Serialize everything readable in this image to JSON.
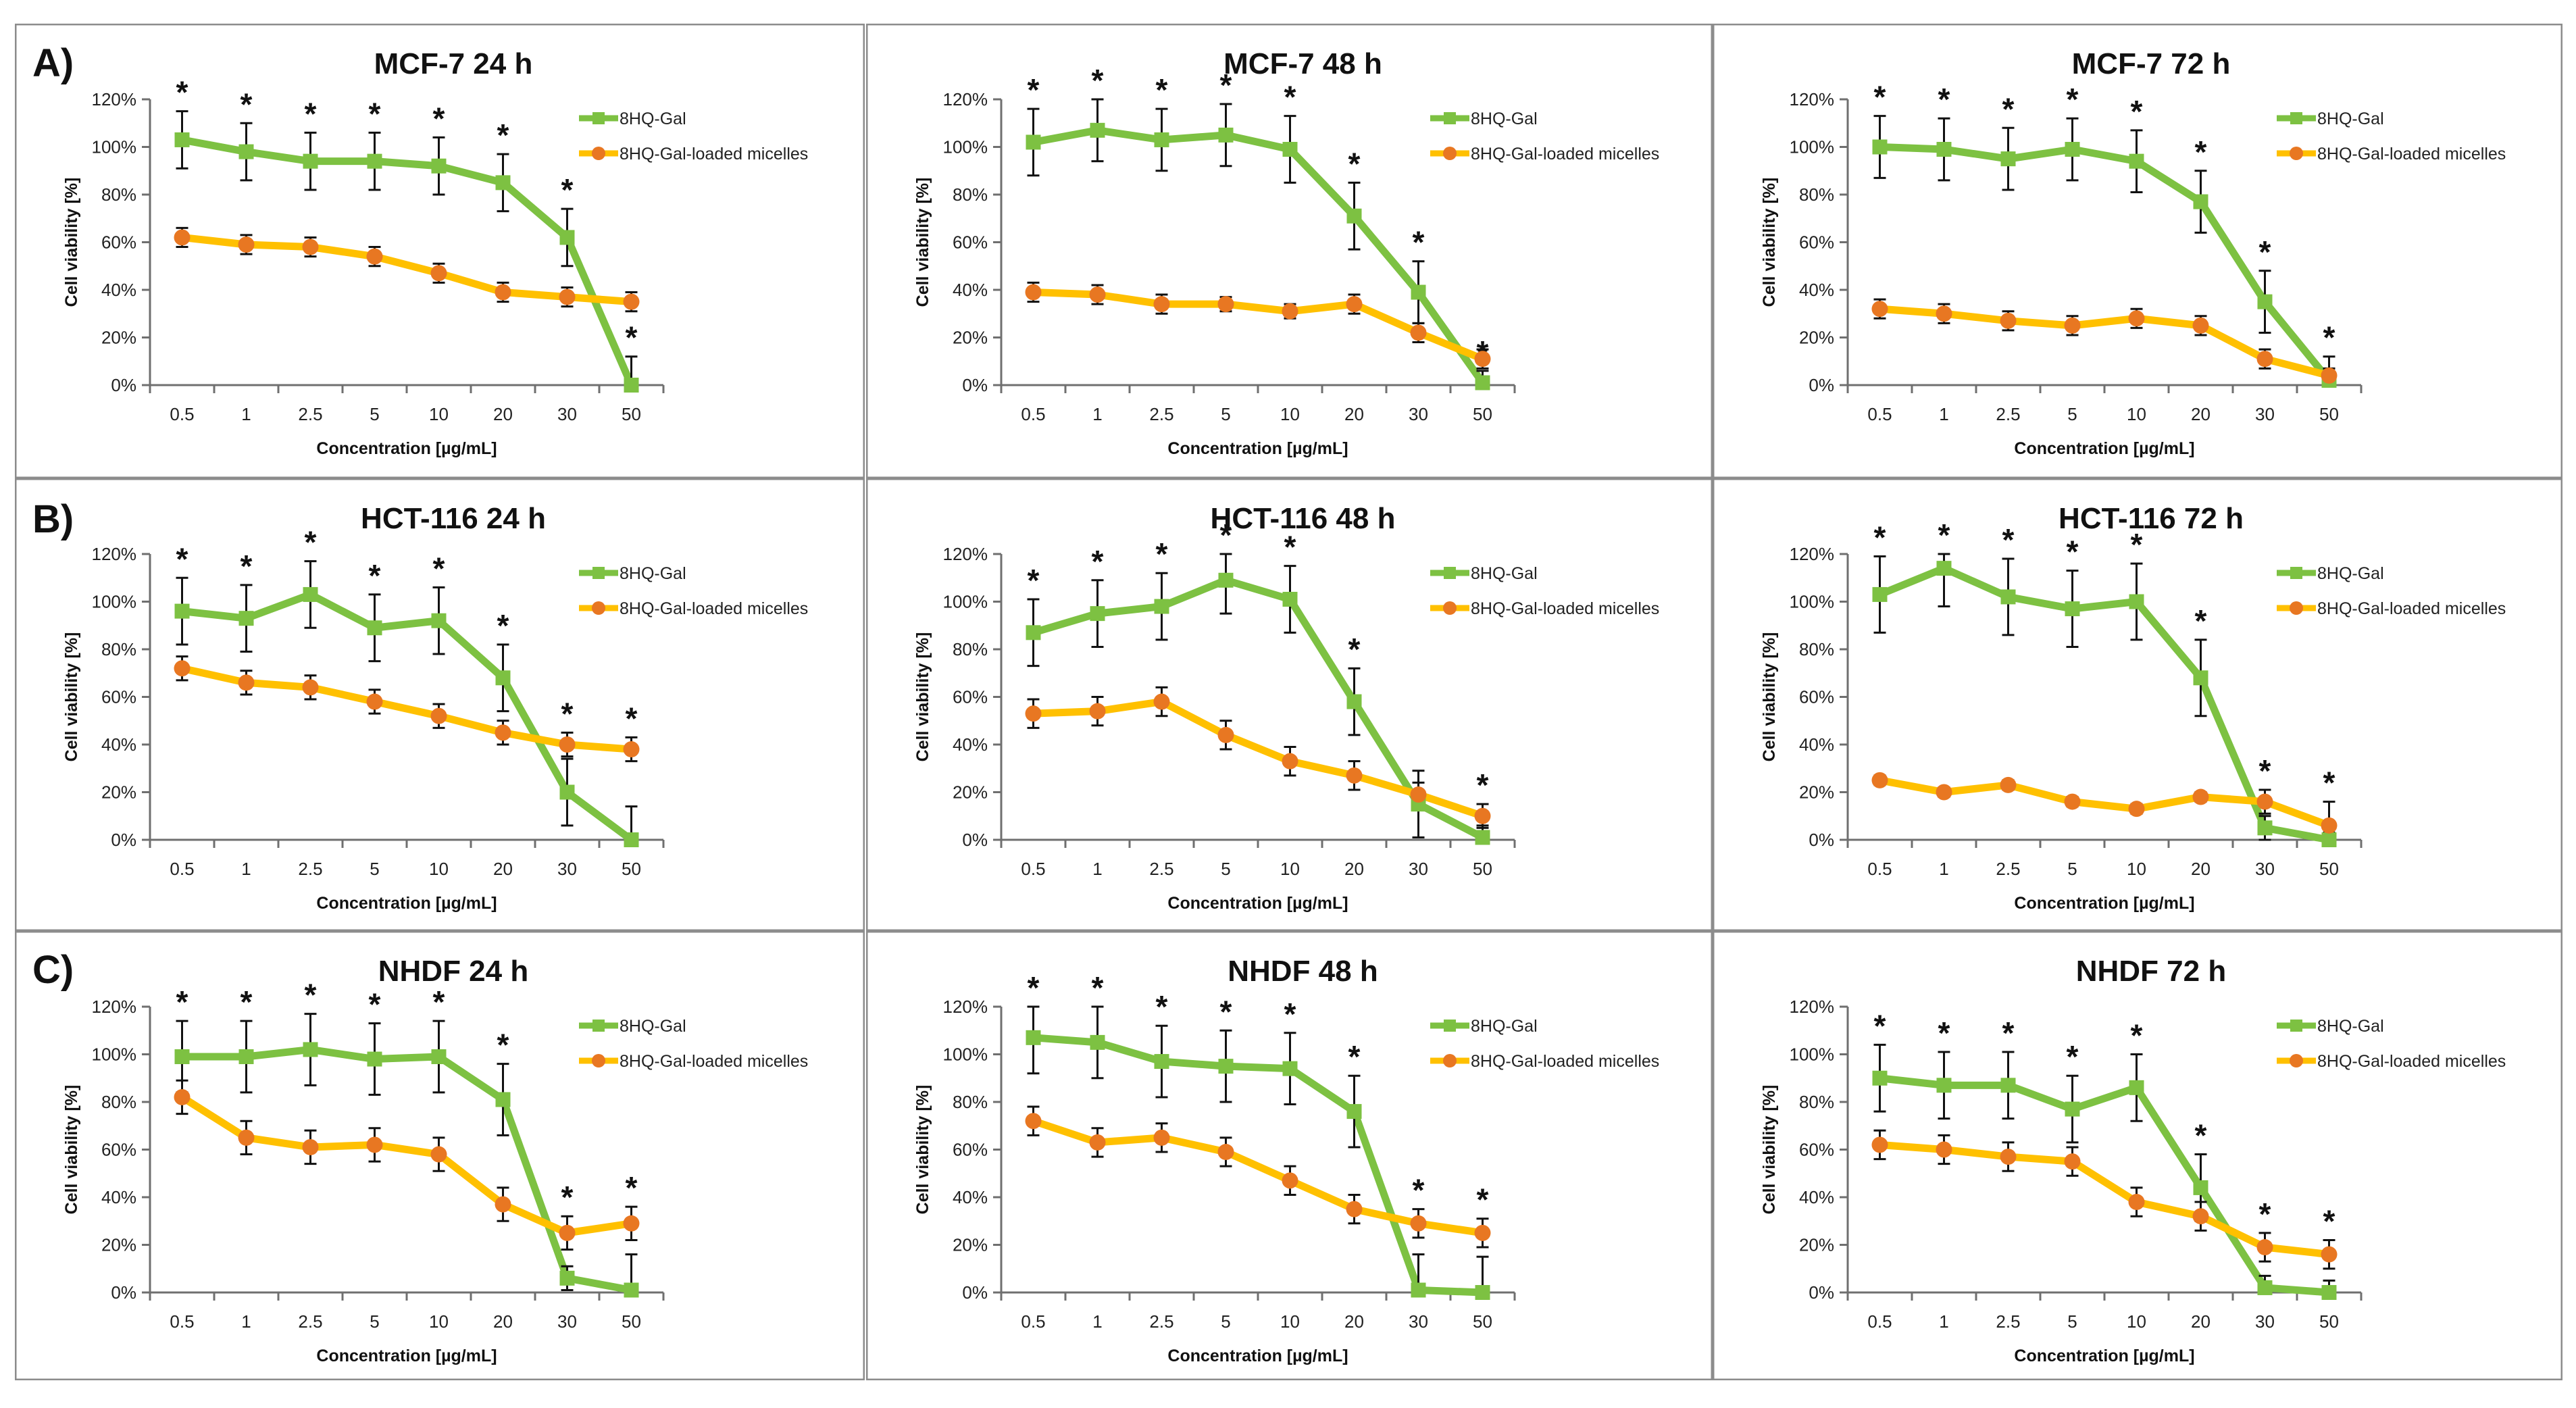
{
  "row_labels": [
    "A)",
    "B)",
    "C)"
  ],
  "chart_data": [
    {
      "type": "line",
      "title": "MCF-7 24 h",
      "xlabel": "Concentration [µg/mL]",
      "ylabel": "Cell viability [%]",
      "categories": [
        "0.5",
        "1",
        "2.5",
        "5",
        "10",
        "20",
        "30",
        "50"
      ],
      "ylim": [
        0,
        120
      ],
      "yticks": [
        "0%",
        "20%",
        "40%",
        "60%",
        "80%",
        "100%",
        "120%"
      ],
      "legend": "top-right",
      "series": [
        {
          "name": "8HQ-Gal",
          "color": "#7dc142",
          "marker": "square",
          "values": [
            103,
            98,
            94,
            94,
            92,
            85,
            62,
            0
          ],
          "errors": [
            12,
            12,
            12,
            12,
            12,
            12,
            12,
            12
          ],
          "significant": [
            true,
            true,
            true,
            true,
            true,
            true,
            true,
            true
          ]
        },
        {
          "name": "8HQ-Gal-loaded micelles",
          "color": "#ffc000",
          "markerColor": "#e87722",
          "marker": "circle",
          "values": [
            62,
            59,
            58,
            54,
            47,
            39,
            37,
            35
          ],
          "errors": [
            4,
            4,
            4,
            4,
            4,
            4,
            4,
            4
          ],
          "significant": [
            false,
            false,
            false,
            false,
            false,
            false,
            false,
            false
          ]
        }
      ]
    },
    {
      "type": "line",
      "title": "MCF-7 48 h",
      "xlabel": "Concentration [µg/mL]",
      "ylabel": "Cell viability [%]",
      "categories": [
        "0.5",
        "1",
        "2.5",
        "5",
        "10",
        "20",
        "30",
        "50"
      ],
      "ylim": [
        0,
        120
      ],
      "yticks": [
        "0%",
        "20%",
        "40%",
        "60%",
        "80%",
        "100%",
        "120%"
      ],
      "legend": "top-right",
      "series": [
        {
          "name": "8HQ-Gal",
          "color": "#7dc142",
          "marker": "square",
          "values": [
            102,
            107,
            103,
            105,
            99,
            71,
            39,
            1
          ],
          "errors": [
            14,
            13,
            13,
            13,
            14,
            14,
            13,
            5
          ],
          "significant": [
            true,
            true,
            true,
            true,
            true,
            true,
            true,
            true
          ]
        },
        {
          "name": "8HQ-Gal-loaded micelles",
          "color": "#ffc000",
          "markerColor": "#e87722",
          "marker": "circle",
          "values": [
            39,
            38,
            34,
            34,
            31,
            34,
            22,
            11
          ],
          "errors": [
            4,
            4,
            4,
            3,
            3,
            4,
            4,
            4
          ],
          "significant": [
            false,
            false,
            false,
            false,
            false,
            false,
            false,
            false
          ]
        }
      ]
    },
    {
      "type": "line",
      "title": "MCF-7 72 h",
      "xlabel": "Concentration [µg/mL]",
      "ylabel": "Cell viability [%]",
      "categories": [
        "0.5",
        "1",
        "2.5",
        "5",
        "10",
        "20",
        "30",
        "50"
      ],
      "ylim": [
        0,
        120
      ],
      "yticks": [
        "0%",
        "20%",
        "40%",
        "60%",
        "80%",
        "100%",
        "120%"
      ],
      "legend": "top-right",
      "series": [
        {
          "name": "8HQ-Gal",
          "color": "#7dc142",
          "marker": "square",
          "values": [
            100,
            99,
            95,
            99,
            94,
            77,
            35,
            2
          ],
          "errors": [
            13,
            13,
            13,
            13,
            13,
            13,
            13,
            10
          ],
          "significant": [
            true,
            true,
            true,
            true,
            true,
            true,
            true,
            true
          ]
        },
        {
          "name": "8HQ-Gal-loaded micelles",
          "color": "#ffc000",
          "markerColor": "#e87722",
          "marker": "circle",
          "values": [
            32,
            30,
            27,
            25,
            28,
            25,
            11,
            4
          ],
          "errors": [
            4,
            4,
            4,
            4,
            4,
            4,
            4,
            3
          ],
          "significant": [
            false,
            false,
            false,
            false,
            false,
            false,
            false,
            false
          ]
        }
      ]
    },
    {
      "type": "line",
      "title": "HCT-116 24 h",
      "xlabel": "Concentration [µg/mL]",
      "ylabel": "Cell viability [%]",
      "categories": [
        "0.5",
        "1",
        "2.5",
        "5",
        "10",
        "20",
        "30",
        "50"
      ],
      "ylim": [
        0,
        120
      ],
      "yticks": [
        "0%",
        "20%",
        "40%",
        "60%",
        "80%",
        "100%",
        "120%"
      ],
      "legend": "top-right",
      "series": [
        {
          "name": "8HQ-Gal",
          "color": "#7dc142",
          "marker": "square",
          "values": [
            96,
            93,
            103,
            89,
            92,
            68,
            20,
            0
          ],
          "errors": [
            14,
            14,
            14,
            14,
            14,
            14,
            14,
            14
          ],
          "significant": [
            true,
            true,
            true,
            true,
            true,
            true,
            false,
            false
          ]
        },
        {
          "name": "8HQ-Gal-loaded micelles",
          "color": "#ffc000",
          "markerColor": "#e87722",
          "marker": "circle",
          "values": [
            72,
            66,
            64,
            58,
            52,
            45,
            40,
            38
          ],
          "errors": [
            5,
            5,
            5,
            5,
            5,
            5,
            5,
            5
          ],
          "significant": [
            false,
            false,
            false,
            false,
            false,
            false,
            true,
            true
          ]
        }
      ]
    },
    {
      "type": "line",
      "title": "HCT-116 48 h",
      "xlabel": "Concentration [µg/mL]",
      "ylabel": "Cell viability [%]",
      "categories": [
        "0.5",
        "1",
        "2.5",
        "5",
        "10",
        "20",
        "30",
        "50"
      ],
      "ylim": [
        0,
        120
      ],
      "yticks": [
        "0%",
        "20%",
        "40%",
        "60%",
        "80%",
        "100%",
        "120%"
      ],
      "legend": "top-right",
      "series": [
        {
          "name": "8HQ-Gal",
          "color": "#7dc142",
          "marker": "square",
          "values": [
            87,
            95,
            98,
            109,
            101,
            58,
            15,
            1
          ],
          "errors": [
            14,
            14,
            14,
            14,
            14,
            14,
            14,
            5
          ],
          "significant": [
            true,
            true,
            true,
            true,
            true,
            true,
            false,
            false
          ]
        },
        {
          "name": "8HQ-Gal-loaded micelles",
          "color": "#ffc000",
          "markerColor": "#e87722",
          "marker": "circle",
          "values": [
            53,
            54,
            58,
            44,
            33,
            27,
            19,
            10
          ],
          "errors": [
            6,
            6,
            6,
            6,
            6,
            6,
            5,
            5
          ],
          "significant": [
            false,
            false,
            false,
            false,
            false,
            false,
            false,
            true
          ]
        }
      ]
    },
    {
      "type": "line",
      "title": "HCT-116 72 h",
      "xlabel": "Concentration [µg/mL]",
      "ylabel": "Cell viability [%]",
      "categories": [
        "0.5",
        "1",
        "2.5",
        "5",
        "10",
        "20",
        "30",
        "50"
      ],
      "ylim": [
        0,
        120
      ],
      "yticks": [
        "0%",
        "20%",
        "40%",
        "60%",
        "80%",
        "100%",
        "120%"
      ],
      "legend": "top-right",
      "series": [
        {
          "name": "8HQ-Gal",
          "color": "#7dc142",
          "marker": "square",
          "values": [
            103,
            114,
            102,
            97,
            100,
            68,
            5,
            0
          ],
          "errors": [
            16,
            16,
            16,
            16,
            16,
            16,
            5,
            3
          ],
          "significant": [
            true,
            true,
            true,
            true,
            true,
            true,
            false,
            false
          ]
        },
        {
          "name": "8HQ-Gal-loaded micelles",
          "color": "#ffc000",
          "markerColor": "#e87722",
          "marker": "circle",
          "values": [
            25,
            20,
            23,
            16,
            13,
            18,
            16,
            6
          ],
          "errors": [
            2,
            2,
            2,
            2,
            2,
            2,
            5,
            10
          ],
          "significant": [
            false,
            false,
            false,
            false,
            false,
            false,
            true,
            true
          ]
        }
      ]
    },
    {
      "type": "line",
      "title": "NHDF 24 h",
      "xlabel": "Concentration [µg/mL]",
      "ylabel": "Cell viability [%]",
      "categories": [
        "0.5",
        "1",
        "2.5",
        "5",
        "10",
        "20",
        "30",
        "50"
      ],
      "ylim": [
        0,
        120
      ],
      "yticks": [
        "0%",
        "20%",
        "40%",
        "60%",
        "80%",
        "100%",
        "120%"
      ],
      "legend": "top-right",
      "series": [
        {
          "name": "8HQ-Gal",
          "color": "#7dc142",
          "marker": "square",
          "values": [
            99,
            99,
            102,
            98,
            99,
            81,
            6,
            1
          ],
          "errors": [
            15,
            15,
            15,
            15,
            15,
            15,
            5,
            15
          ],
          "significant": [
            true,
            true,
            true,
            true,
            true,
            true,
            false,
            false
          ]
        },
        {
          "name": "8HQ-Gal-loaded micelles",
          "color": "#ffc000",
          "markerColor": "#e87722",
          "marker": "circle",
          "values": [
            82,
            65,
            61,
            62,
            58,
            37,
            25,
            29
          ],
          "errors": [
            7,
            7,
            7,
            7,
            7,
            7,
            7,
            7
          ],
          "significant": [
            false,
            false,
            false,
            false,
            false,
            false,
            true,
            true
          ]
        }
      ]
    },
    {
      "type": "line",
      "title": "NHDF 48 h",
      "xlabel": "Concentration [µg/mL]",
      "ylabel": "Cell viability [%]",
      "categories": [
        "0.5",
        "1",
        "2.5",
        "5",
        "10",
        "20",
        "30",
        "50"
      ],
      "ylim": [
        0,
        120
      ],
      "yticks": [
        "0%",
        "20%",
        "40%",
        "60%",
        "80%",
        "100%",
        "120%"
      ],
      "legend": "top-right",
      "series": [
        {
          "name": "8HQ-Gal",
          "color": "#7dc142",
          "marker": "square",
          "values": [
            107,
            105,
            97,
            95,
            94,
            76,
            1,
            0
          ],
          "errors": [
            15,
            15,
            15,
            15,
            15,
            15,
            15,
            15
          ],
          "significant": [
            true,
            true,
            true,
            true,
            true,
            true,
            false,
            false
          ]
        },
        {
          "name": "8HQ-Gal-loaded micelles",
          "color": "#ffc000",
          "markerColor": "#e87722",
          "marker": "circle",
          "values": [
            72,
            63,
            65,
            59,
            47,
            35,
            29,
            25
          ],
          "errors": [
            6,
            6,
            6,
            6,
            6,
            6,
            6,
            6
          ],
          "significant": [
            false,
            false,
            false,
            false,
            false,
            false,
            true,
            true
          ]
        }
      ]
    },
    {
      "type": "line",
      "title": "NHDF 72 h",
      "xlabel": "Concentration [µg/mL]",
      "ylabel": "Cell viability [%]",
      "categories": [
        "0.5",
        "1",
        "2.5",
        "5",
        "10",
        "20",
        "30",
        "50"
      ],
      "ylim": [
        0,
        120
      ],
      "yticks": [
        "0%",
        "20%",
        "40%",
        "60%",
        "80%",
        "100%",
        "120%"
      ],
      "legend": "top-right",
      "series": [
        {
          "name": "8HQ-Gal",
          "color": "#7dc142",
          "marker": "square",
          "values": [
            90,
            87,
            87,
            77,
            86,
            44,
            2,
            0
          ],
          "errors": [
            14,
            14,
            14,
            14,
            14,
            14,
            5,
            5
          ],
          "significant": [
            true,
            true,
            true,
            true,
            true,
            true,
            false,
            false
          ]
        },
        {
          "name": "8HQ-Gal-loaded micelles",
          "color": "#ffc000",
          "markerColor": "#e87722",
          "marker": "circle",
          "values": [
            62,
            60,
            57,
            55,
            38,
            32,
            19,
            16
          ],
          "errors": [
            6,
            6,
            6,
            6,
            6,
            6,
            6,
            6
          ],
          "significant": [
            false,
            false,
            false,
            false,
            false,
            false,
            true,
            true
          ]
        }
      ]
    }
  ]
}
